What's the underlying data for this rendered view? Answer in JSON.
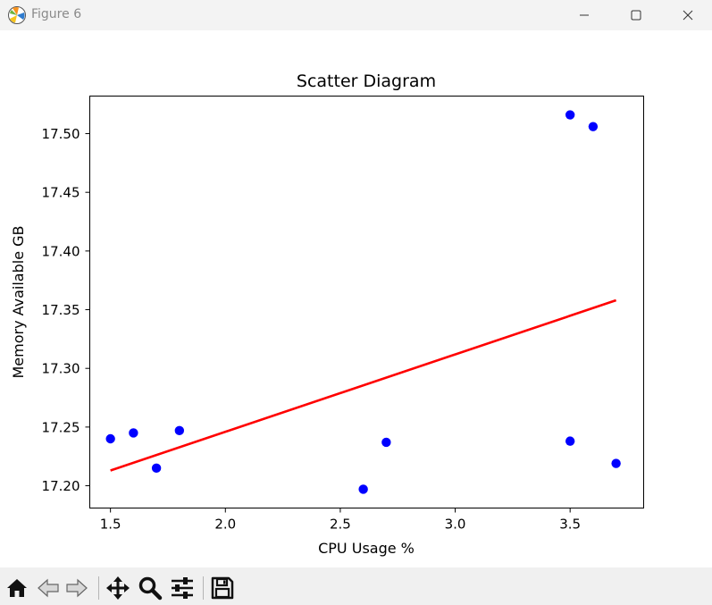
{
  "window": {
    "title": "Figure 6",
    "icons": [
      "matplotlib-logo-icon",
      "minimize-icon",
      "maximize-icon",
      "close-icon"
    ]
  },
  "toolbar": {
    "buttons": [
      "home-icon",
      "back-icon",
      "forward-icon",
      "pan-icon",
      "zoom-icon",
      "configure-subplots-icon",
      "save-icon"
    ]
  },
  "chart_data": {
    "type": "scatter",
    "title": "Scatter Diagram",
    "xlabel": "CPU Usage %",
    "ylabel": "Memory Available GB",
    "xlim": [
      1.41,
      3.82
    ],
    "ylim": [
      17.181,
      17.532
    ],
    "xticks": [
      1.5,
      2.0,
      2.5,
      3.0,
      3.5
    ],
    "xtick_labels": [
      "1.5",
      "2.0",
      "2.5",
      "3.0",
      "3.5"
    ],
    "yticks": [
      17.2,
      17.25,
      17.3,
      17.35,
      17.4,
      17.45,
      17.5
    ],
    "ytick_labels": [
      "17.20",
      "17.25",
      "17.30",
      "17.35",
      "17.40",
      "17.45",
      "17.50"
    ],
    "grid": false,
    "points": {
      "x": [
        1.5,
        1.6,
        1.7,
        1.8,
        2.6,
        2.7,
        3.5,
        3.5,
        3.6,
        3.7
      ],
      "y": [
        17.24,
        17.245,
        17.215,
        17.247,
        17.197,
        17.237,
        17.516,
        17.238,
        17.506,
        17.219
      ],
      "color": "#0000ff"
    },
    "fit_line": {
      "x": [
        1.5,
        3.7
      ],
      "y": [
        17.213,
        17.358
      ],
      "color": "#ff0000"
    }
  }
}
